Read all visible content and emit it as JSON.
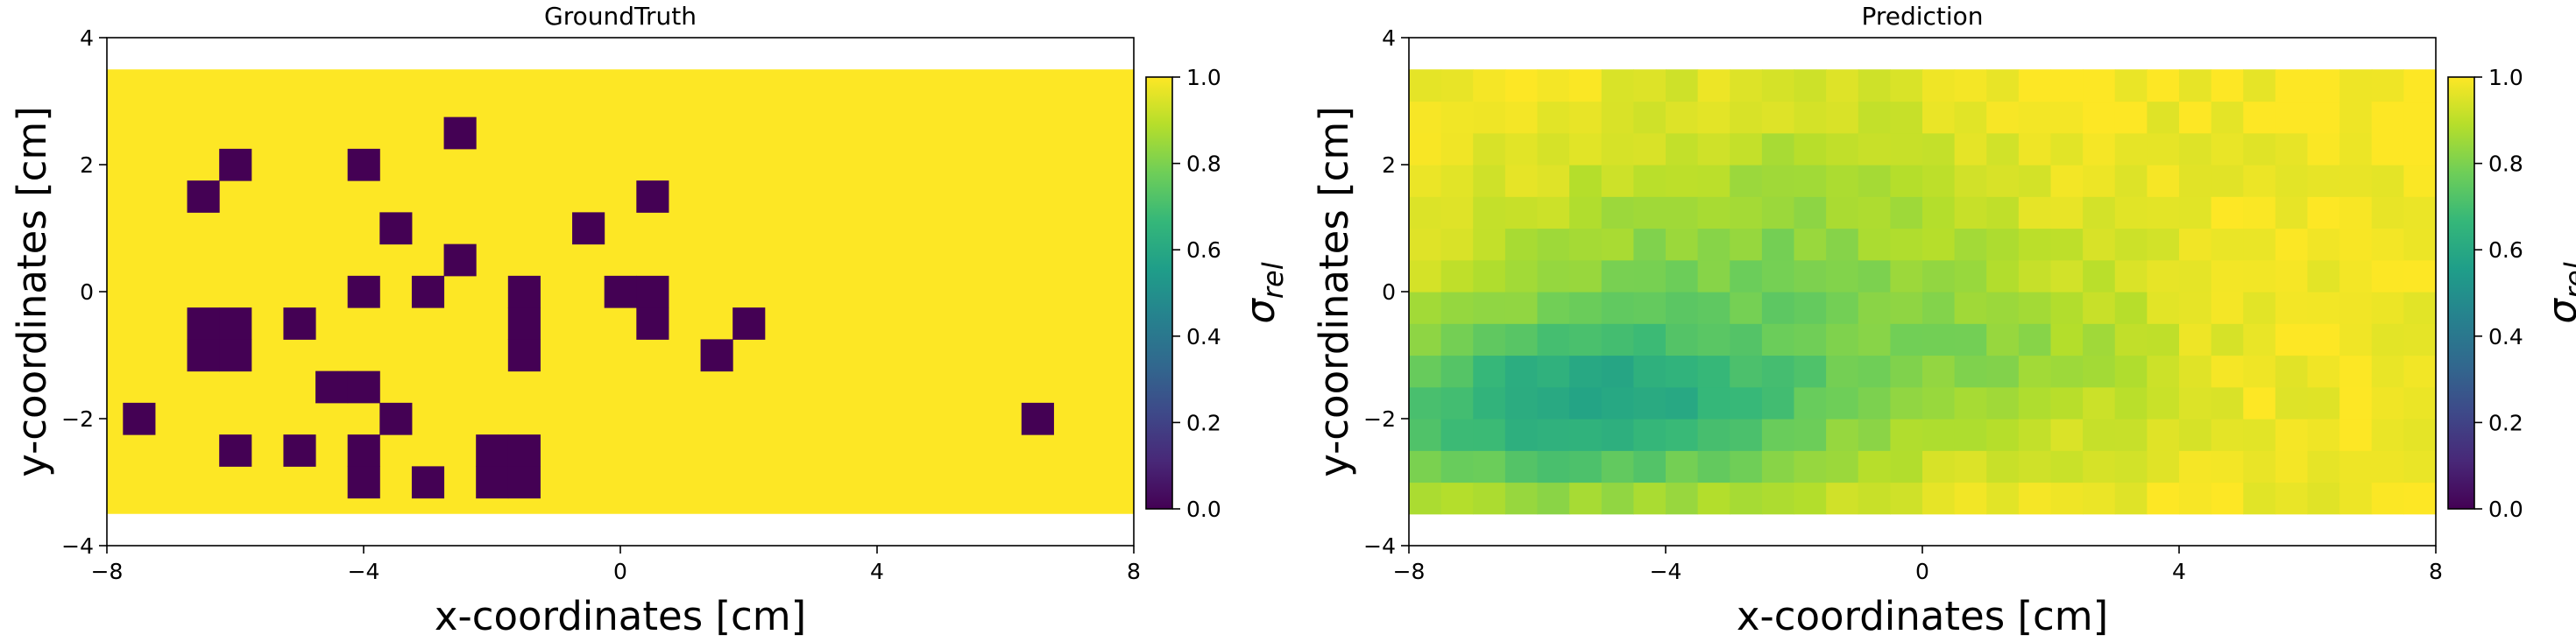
{
  "chart_data": [
    {
      "type": "heatmap",
      "title": "GroundTruth",
      "xlabel": "x-coordinates [cm]",
      "ylabel": "y-coordinates [cm]",
      "xlim": [
        -8,
        8
      ],
      "ylim": [
        -4,
        4
      ],
      "xticks": [
        -8,
        -4,
        0,
        4,
        8
      ],
      "yticks": [
        -4,
        -2,
        0,
        2,
        4
      ],
      "cell_size_cm": 0.5,
      "data_extent": {
        "x": [
          -8,
          8
        ],
        "y": [
          -3.5,
          3.5
        ]
      },
      "background_value": 1.0,
      "low_value": 0.0,
      "low_cells": [
        [
          -7.5,
          -2
        ],
        [
          -6.5,
          1.5
        ],
        [
          -6,
          2
        ],
        [
          -6.5,
          -0.5
        ],
        [
          -6.5,
          -1
        ],
        [
          -6,
          -0.5
        ],
        [
          -6,
          -1
        ],
        [
          -6,
          -2.5
        ],
        [
          -5,
          -0.5
        ],
        [
          -5,
          -2.5
        ],
        [
          -4.5,
          -1.5
        ],
        [
          -4,
          2
        ],
        [
          -4,
          0
        ],
        [
          -4,
          -1.5
        ],
        [
          -4,
          -2.5
        ],
        [
          -4,
          -3
        ],
        [
          -3.5,
          1
        ],
        [
          -3.5,
          -2
        ],
        [
          -3,
          0
        ],
        [
          -3,
          -3
        ],
        [
          -2.5,
          2.5
        ],
        [
          -2.5,
          0.5
        ],
        [
          -2,
          -3
        ],
        [
          -2,
          -2.5
        ],
        [
          -1.5,
          0
        ],
        [
          -1.5,
          -0.5
        ],
        [
          -1.5,
          -1
        ],
        [
          -1.5,
          -2.5
        ],
        [
          -1.5,
          -3
        ],
        [
          -0.5,
          1
        ],
        [
          0,
          0
        ],
        [
          0.5,
          0
        ],
        [
          0.5,
          -0.5
        ],
        [
          0.5,
          1.5
        ],
        [
          1.5,
          -1
        ],
        [
          2,
          -0.5
        ],
        [
          6.5,
          -2
        ]
      ],
      "colorbar": {
        "label": "σ_rel",
        "min": 0.0,
        "max": 1.0,
        "ticks": [
          "0.0",
          "0.2",
          "0.4",
          "0.6",
          "0.8",
          "1.0"
        ]
      }
    },
    {
      "type": "heatmap",
      "title": "Prediction",
      "xlabel": "x-coordinates [cm]",
      "ylabel": "y-coordinates [cm]",
      "xlim": [
        -8,
        8
      ],
      "ylim": [
        -4,
        4
      ],
      "xticks": [
        -8,
        -4,
        0,
        4,
        8
      ],
      "yticks": [
        -4,
        -2,
        0,
        2,
        4
      ],
      "cell_size_cm": 0.5,
      "data_extent": {
        "x": [
          -8,
          8
        ],
        "y": [
          -3.5,
          3.5
        ]
      },
      "value_range": [
        0.55,
        1.0
      ],
      "colorbar": {
        "label": "σ_rel",
        "min": 0.0,
        "max": 1.0,
        "ticks": [
          "0.0",
          "0.2",
          "0.4",
          "0.6",
          "0.8",
          "1.0"
        ]
      }
    }
  ],
  "colormap": {
    "name": "viridis",
    "stops": [
      "#440154",
      "#482878",
      "#3e4989",
      "#31688e",
      "#26828e",
      "#1f9e89",
      "#35b779",
      "#6ece58",
      "#b5de2b",
      "#fde725"
    ]
  }
}
